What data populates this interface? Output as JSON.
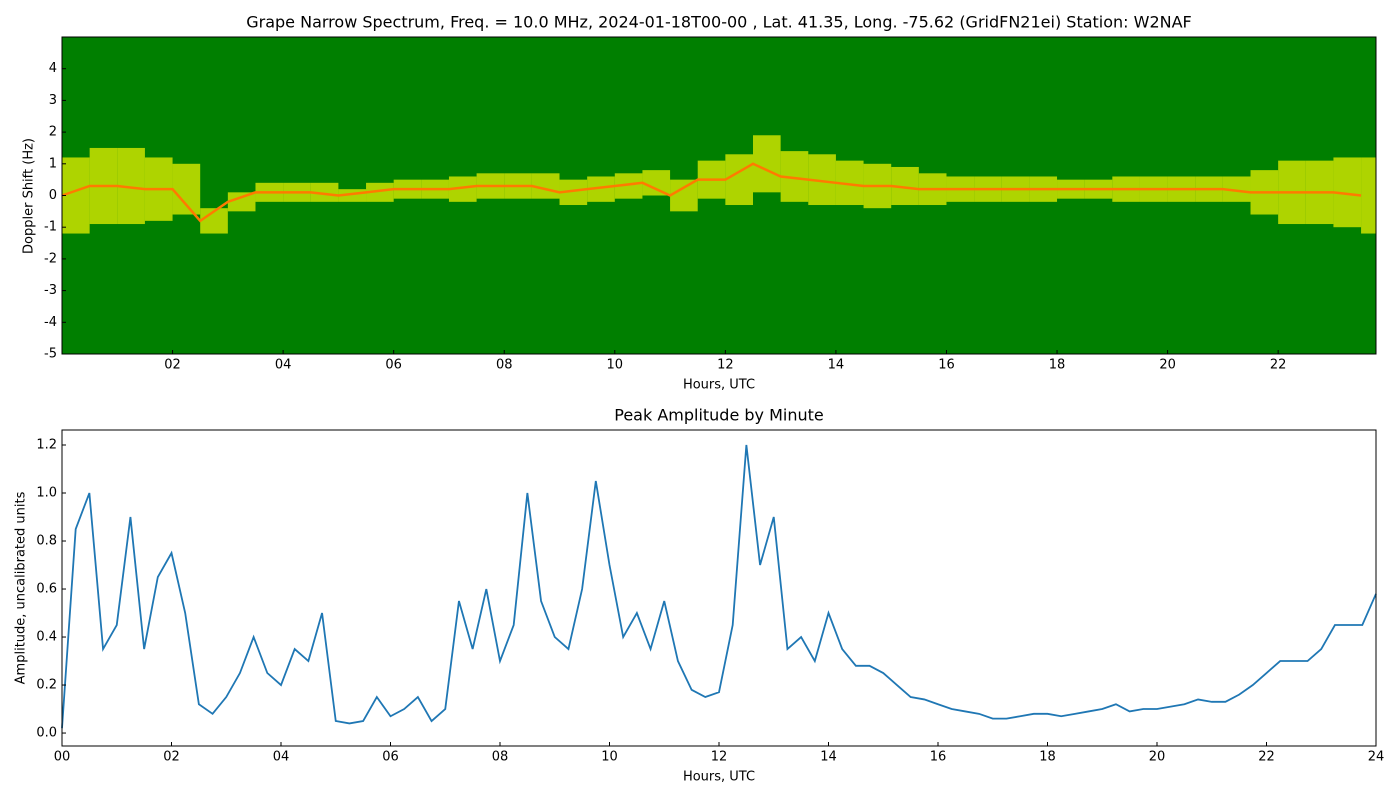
{
  "chart_data": [
    {
      "type": "spectrogram",
      "title": "Grape Narrow Spectrum, Freq. = 10.0 MHz, 2024-01-18T00-00 , Lat.  41.35, Long. -75.62 (GridFN21ei) Station: W2NAF",
      "xlabel": "Hours, UTC",
      "ylabel": "Doppler Shift (Hz)",
      "x": [
        0,
        0.5,
        1,
        1.5,
        2,
        2.5,
        3,
        3.5,
        4,
        4.5,
        5,
        5.5,
        6,
        6.5,
        7,
        7.5,
        8,
        8.5,
        9,
        9.5,
        10,
        10.5,
        11,
        11.5,
        12,
        12.5,
        13,
        13.5,
        14,
        14.5,
        15,
        15.5,
        16,
        16.5,
        17,
        17.5,
        18,
        18.5,
        19,
        19.5,
        20,
        20.5,
        21,
        21.5,
        22,
        22.5,
        23,
        23.5
      ],
      "values": [
        0.0,
        0.3,
        0.3,
        0.2,
        0.2,
        -0.8,
        -0.2,
        0.1,
        0.1,
        0.1,
        0.0,
        0.1,
        0.2,
        0.2,
        0.2,
        0.3,
        0.3,
        0.3,
        0.1,
        0.2,
        0.3,
        0.4,
        0.0,
        0.5,
        0.5,
        1.0,
        0.6,
        0.5,
        0.4,
        0.3,
        0.3,
        0.2,
        0.2,
        0.2,
        0.2,
        0.2,
        0.2,
        0.2,
        0.2,
        0.2,
        0.2,
        0.2,
        0.2,
        0.1,
        0.1,
        0.1,
        0.1,
        0.0
      ],
      "spread": [
        1.2,
        1.2,
        1.2,
        1.0,
        0.8,
        0.4,
        0.3,
        0.3,
        0.3,
        0.3,
        0.2,
        0.3,
        0.3,
        0.3,
        0.4,
        0.4,
        0.4,
        0.4,
        0.4,
        0.4,
        0.4,
        0.4,
        0.5,
        0.6,
        0.8,
        0.9,
        0.8,
        0.8,
        0.7,
        0.7,
        0.6,
        0.5,
        0.4,
        0.4,
        0.4,
        0.4,
        0.3,
        0.3,
        0.4,
        0.4,
        0.4,
        0.4,
        0.4,
        0.7,
        1.0,
        1.0,
        1.1,
        1.2
      ],
      "colors": {
        "background": "#007f00",
        "spread": "#e8f000",
        "ridge": "#ff7a00"
      },
      "xlim": [
        0,
        23.77
      ],
      "ylim": [
        -5,
        5
      ],
      "xticks": [
        {
          "value": 2,
          "label": "02"
        },
        {
          "value": 4,
          "label": "04"
        },
        {
          "value": 6,
          "label": "06"
        },
        {
          "value": 8,
          "label": "08"
        },
        {
          "value": 10,
          "label": "10"
        },
        {
          "value": 12,
          "label": "12"
        },
        {
          "value": 14,
          "label": "14"
        },
        {
          "value": 16,
          "label": "16"
        },
        {
          "value": 18,
          "label": "18"
        },
        {
          "value": 20,
          "label": "20"
        },
        {
          "value": 22,
          "label": "22"
        }
      ],
      "yticks": [
        -5,
        -4,
        -3,
        -2,
        -1,
        0,
        1,
        2,
        3,
        4
      ]
    },
    {
      "type": "line",
      "title": "Peak Amplitude by Minute",
      "xlabel": "Hours, UTC",
      "ylabel": "Amplitude, uncalibrated units",
      "color": "#1f77b4",
      "x": [
        0,
        0.25,
        0.5,
        0.75,
        1,
        1.25,
        1.5,
        1.75,
        2,
        2.25,
        2.5,
        2.75,
        3,
        3.25,
        3.5,
        3.75,
        4,
        4.25,
        4.5,
        4.75,
        5,
        5.25,
        5.5,
        5.75,
        6,
        6.25,
        6.5,
        6.75,
        7,
        7.25,
        7.5,
        7.75,
        8,
        8.25,
        8.5,
        8.75,
        9,
        9.25,
        9.5,
        9.75,
        10,
        10.25,
        10.5,
        10.75,
        11,
        11.25,
        11.5,
        11.75,
        12,
        12.25,
        12.5,
        12.75,
        13,
        13.25,
        13.5,
        13.75,
        14,
        14.25,
        14.5,
        14.75,
        15,
        15.25,
        15.5,
        15.75,
        16,
        16.25,
        16.5,
        16.75,
        17,
        17.25,
        17.5,
        17.75,
        18,
        18.25,
        18.5,
        18.75,
        19,
        19.25,
        19.5,
        19.75,
        20,
        20.25,
        20.5,
        20.75,
        21,
        21.25,
        21.5,
        21.75,
        22,
        22.25,
        22.5,
        22.75,
        23,
        23.25,
        23.5,
        23.75,
        24
      ],
      "values": [
        0.02,
        0.85,
        1.0,
        0.35,
        0.45,
        0.9,
        0.35,
        0.65,
        0.75,
        0.5,
        0.12,
        0.08,
        0.15,
        0.25,
        0.4,
        0.25,
        0.2,
        0.35,
        0.3,
        0.5,
        0.05,
        0.04,
        0.05,
        0.15,
        0.07,
        0.1,
        0.15,
        0.05,
        0.1,
        0.55,
        0.35,
        0.6,
        0.3,
        0.45,
        1.0,
        0.55,
        0.4,
        0.35,
        0.6,
        1.05,
        0.7,
        0.4,
        0.5,
        0.35,
        0.55,
        0.3,
        0.18,
        0.15,
        0.17,
        0.45,
        1.2,
        0.7,
        0.9,
        0.35,
        0.4,
        0.3,
        0.5,
        0.35,
        0.28,
        0.28,
        0.25,
        0.2,
        0.15,
        0.14,
        0.12,
        0.1,
        0.09,
        0.08,
        0.06,
        0.06,
        0.07,
        0.08,
        0.08,
        0.07,
        0.08,
        0.09,
        0.1,
        0.12,
        0.09,
        0.1,
        0.1,
        0.11,
        0.12,
        0.14,
        0.13,
        0.13,
        0.16,
        0.2,
        0.25,
        0.3,
        0.3,
        0.3,
        0.35,
        0.45,
        0.45,
        0.45,
        0.58
      ],
      "xlim": [
        0,
        24
      ],
      "ylim": [
        -0.054,
        1.2625
      ],
      "xticks": [
        {
          "value": 0,
          "label": "00"
        },
        {
          "value": 2,
          "label": "02"
        },
        {
          "value": 4,
          "label": "04"
        },
        {
          "value": 6,
          "label": "06"
        },
        {
          "value": 8,
          "label": "08"
        },
        {
          "value": 10,
          "label": "10"
        },
        {
          "value": 12,
          "label": "12"
        },
        {
          "value": 14,
          "label": "14"
        },
        {
          "value": 16,
          "label": "16"
        },
        {
          "value": 18,
          "label": "18"
        },
        {
          "value": 20,
          "label": "20"
        },
        {
          "value": 22,
          "label": "22"
        },
        {
          "value": 24,
          "label": "24"
        }
      ],
      "yticks": [
        {
          "value": 0,
          "label": "0.0"
        },
        0.2,
        0.4,
        0.6,
        0.8,
        {
          "value": 1,
          "label": "1.0"
        },
        1.2
      ]
    }
  ]
}
